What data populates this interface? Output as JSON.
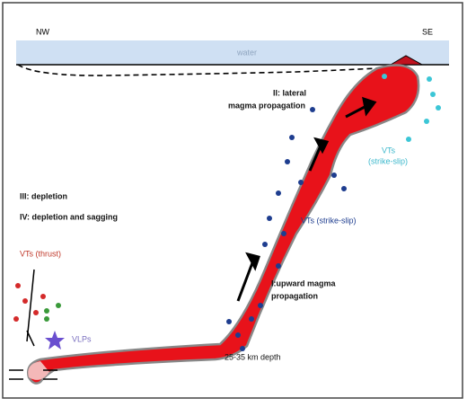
{
  "labels": {
    "nw": "NW",
    "se": "SE",
    "water": "water",
    "lateral": [
      "II: lateral",
      "magma propagation"
    ],
    "vts_cyan": [
      "VTs",
      "(strike-slip)"
    ],
    "depletion": "III: depletion",
    "sagging": "IV: depletion and sagging",
    "vts_blue": "VTs (strike-slip)",
    "vts_thrust": "VTs (thrust)",
    "upward": [
      "I:upward magma",
      "propagation"
    ],
    "vlps": "VLPs",
    "depth": "25-35 km depth"
  }
}
